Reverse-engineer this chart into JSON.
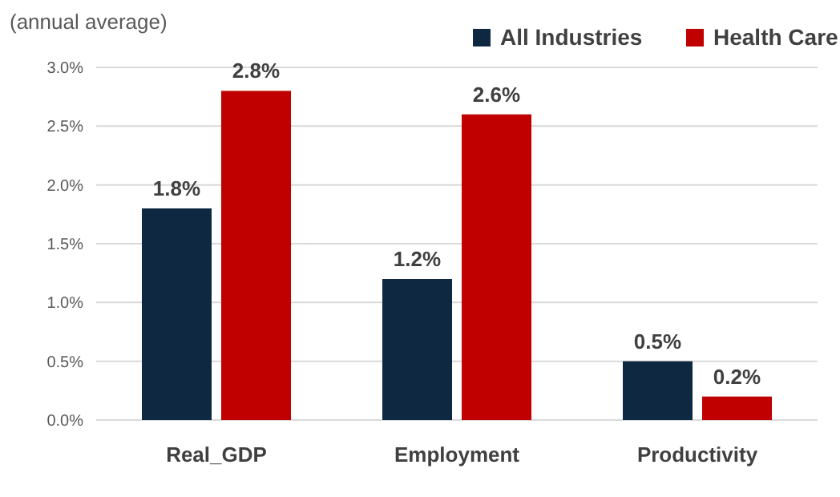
{
  "chart_data": {
    "type": "bar",
    "ylabel": "(annual average)",
    "categories": [
      "Real_GDP",
      "Employment",
      "Productivity"
    ],
    "series": [
      {
        "name": "All Industries",
        "color": "#0e2841",
        "values": [
          1.8,
          1.2,
          0.5
        ],
        "value_labels": [
          "1.8%",
          "1.2%",
          "0.5%"
        ]
      },
      {
        "name": "Health Care",
        "color": "#c00000",
        "values": [
          2.8,
          2.6,
          0.2
        ],
        "value_labels": [
          "2.8%",
          "2.6%",
          "0.2%"
        ]
      }
    ],
    "ylim": [
      0,
      3
    ],
    "yticks": [
      {
        "value": 0,
        "label": "0.0%"
      },
      {
        "value": 0.5,
        "label": "0.5%"
      },
      {
        "value": 1,
        "label": "1.0%"
      },
      {
        "value": 1.5,
        "label": "1.5%"
      },
      {
        "value": 2,
        "label": "2.0%"
      },
      {
        "value": 2.5,
        "label": "2.5%"
      },
      {
        "value": 3,
        "label": "3.0%"
      }
    ],
    "grid": "y",
    "legend": "top right"
  }
}
